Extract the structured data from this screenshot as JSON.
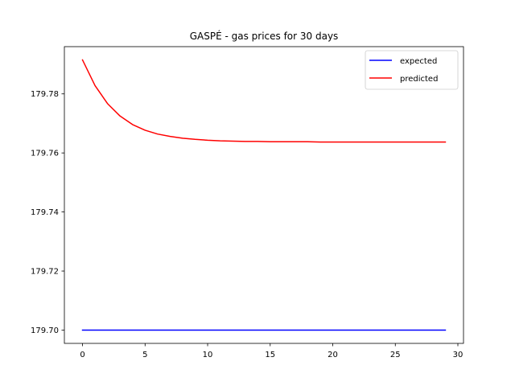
{
  "chart_data": {
    "type": "line",
    "title": "GASPÉ - gas prices for 30 days",
    "xlabel": "",
    "ylabel": "",
    "xlim": [
      -1.45,
      30.45
    ],
    "ylim": [
      179.6955,
      179.796
    ],
    "xticks": [
      0,
      5,
      10,
      15,
      20,
      25,
      30
    ],
    "xtick_labels": [
      "0",
      "5",
      "10",
      "15",
      "20",
      "25",
      "30"
    ],
    "yticks": [
      179.7,
      179.72,
      179.74,
      179.76,
      179.78
    ],
    "ytick_labels": [
      "179.70",
      "179.72",
      "179.74",
      "179.76",
      "179.78"
    ],
    "grid": false,
    "legend_position": "top-right",
    "series": [
      {
        "name": "expected",
        "color": "#0000ff",
        "x": [
          0,
          1,
          2,
          3,
          4,
          5,
          6,
          7,
          8,
          9,
          10,
          11,
          12,
          13,
          14,
          15,
          16,
          17,
          18,
          19,
          20,
          21,
          22,
          23,
          24,
          25,
          26,
          27,
          28,
          29
        ],
        "y": [
          179.7,
          179.7,
          179.7,
          179.7,
          179.7,
          179.7,
          179.7,
          179.7,
          179.7,
          179.7,
          179.7,
          179.7,
          179.7,
          179.7,
          179.7,
          179.7,
          179.7,
          179.7,
          179.7,
          179.7,
          179.7,
          179.7,
          179.7,
          179.7,
          179.7,
          179.7,
          179.7,
          179.7,
          179.7,
          179.7
        ]
      },
      {
        "name": "predicted",
        "color": "#ff0000",
        "x": [
          0,
          1,
          2,
          3,
          4,
          5,
          6,
          7,
          8,
          9,
          10,
          11,
          12,
          13,
          14,
          15,
          16,
          17,
          18,
          19,
          20,
          21,
          22,
          23,
          24,
          25,
          26,
          27,
          28,
          29
        ],
        "y": [
          179.7915,
          179.7828,
          179.7767,
          179.7725,
          179.7696,
          179.7677,
          179.7664,
          179.7656,
          179.765,
          179.7646,
          179.7643,
          179.7641,
          179.764,
          179.7639,
          179.7639,
          179.7638,
          179.7638,
          179.7638,
          179.7638,
          179.7637,
          179.7637,
          179.7637,
          179.7637,
          179.7637,
          179.7637,
          179.7637,
          179.7637,
          179.7637,
          179.7637,
          179.7637
        ]
      }
    ]
  }
}
